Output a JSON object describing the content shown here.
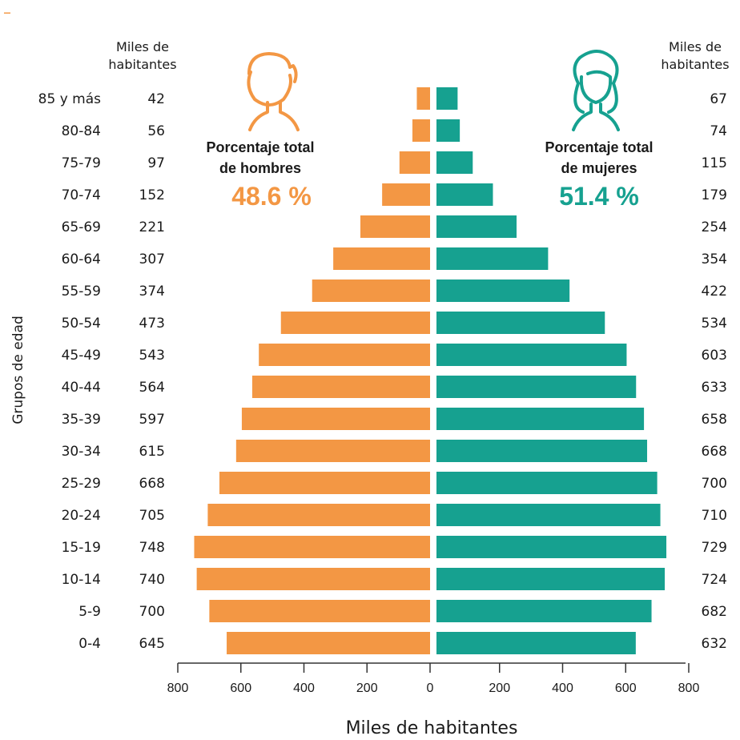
{
  "corner_mark": "–",
  "left_header": [
    "Miles de",
    "habitantes"
  ],
  "right_header": [
    "Miles de",
    "habitantes"
  ],
  "men_summary": {
    "title": [
      "Porcentaje total",
      "de hombres"
    ],
    "value": "48.6 %"
  },
  "women_summary": {
    "title": [
      "Porcentaje total",
      "de mujeres"
    ],
    "value": "51.4 %"
  },
  "colors": {
    "men": "#F39744",
    "women": "#16A190",
    "corner": "#F39744"
  },
  "icons": {
    "men": "man-outline-icon",
    "women": "woman-outline-icon"
  },
  "chart_data": {
    "type": "bar",
    "orientation": "horizontal",
    "layout": "population-pyramid",
    "categories": [
      "85 y más",
      "80-84",
      "75-79",
      "70-74",
      "65-69",
      "60-64",
      "55-59",
      "50-54",
      "45-49",
      "40-44",
      "35-39",
      "30-34",
      "25-29",
      "20-24",
      "15-19",
      "10-14",
      "5-9",
      "0-4"
    ],
    "series": [
      {
        "side": "left",
        "values": [
          42,
          56,
          97,
          152,
          221,
          307,
          374,
          473,
          543,
          564,
          597,
          615,
          668,
          705,
          748,
          740,
          700,
          645
        ]
      },
      {
        "side": "right",
        "values": [
          67,
          74,
          115,
          179,
          254,
          354,
          422,
          534,
          603,
          633,
          658,
          668,
          700,
          710,
          729,
          724,
          682,
          632
        ]
      }
    ],
    "xlabel": "Miles de habitantes",
    "ylabel": "Grupos de edad",
    "xlim": [
      0,
      800
    ],
    "xticks_left": [
      "800",
      "600",
      "400",
      "200",
      "0"
    ],
    "xticks_right": [
      "200",
      "400",
      "600",
      "800"
    ],
    "grid": false,
    "legend": "none"
  }
}
